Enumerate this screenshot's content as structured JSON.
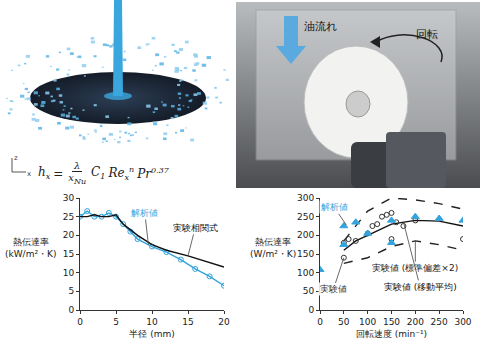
{
  "simulation_panel": {
    "axis_labels": [
      "z",
      "x"
    ],
    "formula": {
      "lhs": "h",
      "lhs_sub": "x",
      "eq": "=",
      "numerator": "λ",
      "denominator": "x",
      "denominator_sub": "Nu",
      "terms": [
        {
          "base": "C",
          "sub": "1"
        },
        {
          "base": "Re",
          "sub": "x",
          "sup": "n"
        },
        {
          "base": "Pr",
          "sup": "0.37"
        }
      ]
    }
  },
  "photo_panel": {
    "flow_label": "油流れ",
    "rotation_label": "回転"
  },
  "chart_data": [
    {
      "type": "line",
      "x_label": "半径 (mm)",
      "y_label": [
        "熱伝達率",
        "(kW/m²・K)"
      ],
      "xlim": [
        0,
        20
      ],
      "xticks": [
        0,
        5,
        10,
        15,
        20
      ],
      "ylim": [
        0,
        30
      ],
      "yticks": [
        0,
        5,
        10,
        15,
        20,
        25,
        30
      ],
      "grid": false,
      "series": [
        {
          "name": "解析値",
          "type": "line",
          "color": "#33a3dc",
          "marker": "circle-open",
          "line_style": "solid",
          "x": [
            0,
            1,
            2,
            3,
            4,
            5,
            6,
            7,
            8,
            10,
            12,
            14,
            16,
            18,
            20
          ],
          "values": [
            25,
            26.5,
            25,
            25,
            26,
            25,
            23,
            21,
            19,
            17,
            15.5,
            13.5,
            11,
            9,
            6.5
          ]
        },
        {
          "name": "実験相関式",
          "type": "line",
          "color": "#111111",
          "line_style": "solid",
          "x": [
            0,
            1,
            2,
            3,
            4,
            5,
            6,
            8,
            10,
            12,
            15,
            20
          ],
          "values": [
            25,
            25,
            25.5,
            25,
            25,
            25.5,
            23,
            20,
            17.5,
            16,
            14.5,
            11.5
          ]
        }
      ],
      "annotations": [
        {
          "series": "解析値",
          "x": 9.5,
          "y": 17.5,
          "text_x": 9,
          "text_y": 26
        },
        {
          "series": "実験相関式",
          "x": 15,
          "y": 14.5,
          "text_x": 16,
          "text_y": 22
        }
      ]
    },
    {
      "type": "scatter",
      "x_label": "回転速度 (min⁻¹)",
      "y_label": [
        "熱伝達率",
        "(W/m²・K)"
      ],
      "xlim": [
        0,
        300
      ],
      "xticks": [
        0,
        50,
        100,
        150,
        200,
        250,
        300
      ],
      "ylim": [
        0,
        300
      ],
      "yticks": [
        0,
        50,
        100,
        150,
        200,
        250,
        300
      ],
      "grid": false,
      "series": [
        {
          "name": "実験値 (標準偏差×2)",
          "type": "line",
          "color": "#222222",
          "line_style": "dashed",
          "x": [
            50,
            100,
            150,
            200,
            250,
            300
          ],
          "values": [
            185,
            265,
            300,
            295,
            285,
            270
          ]
        },
        {
          "name": "実験値 (標準偏差×2)",
          "type": "line",
          "color": "#222222",
          "line_style": "dashed",
          "x": [
            50,
            100,
            150,
            200,
            250,
            300
          ],
          "values": [
            125,
            140,
            170,
            185,
            175,
            160
          ]
        },
        {
          "name": "実験値 (移動平均)",
          "type": "line",
          "color": "#111111",
          "line_style": "solid",
          "x": [
            50,
            75,
            100,
            125,
            150,
            200,
            250,
            300
          ],
          "values": [
            160,
            185,
            200,
            215,
            230,
            240,
            238,
            225
          ]
        },
        {
          "name": "実験値",
          "type": "scatter",
          "color": "#333333",
          "marker": "circle-open",
          "x": [
            50,
            50,
            60,
            75,
            100,
            110,
            120,
            130,
            140,
            150,
            150,
            160,
            175,
            200,
            300
          ],
          "values": [
            140,
            180,
            190,
            185,
            205,
            225,
            230,
            250,
            255,
            260,
            190,
            235,
            225,
            240,
            190
          ]
        },
        {
          "name": "解析値",
          "type": "scatter",
          "color": "#33a3dc",
          "marker": "triangle-up",
          "x": [
            0,
            50,
            50,
            75,
            100,
            150,
            150,
            200,
            250,
            300
          ],
          "values": [
            108,
            175,
            225,
            235,
            205,
            240,
            180,
            250,
            245,
            240
          ]
        }
      ],
      "annotations": [
        {
          "series": "解析値",
          "x": 55,
          "y": 228,
          "text_x": 30,
          "text_y": 275
        },
        {
          "series": "実験値",
          "x": 50,
          "y": 140,
          "text_x": 28,
          "text_y": 55
        },
        {
          "series": "実験値 (標準偏差×2)",
          "x": 200,
          "y": 185,
          "text_x": 200,
          "text_y": 112
        },
        {
          "series": "実験値 (移動平均)",
          "x": 175,
          "y": 236,
          "text_x": 210,
          "text_y": 62
        }
      ]
    }
  ]
}
